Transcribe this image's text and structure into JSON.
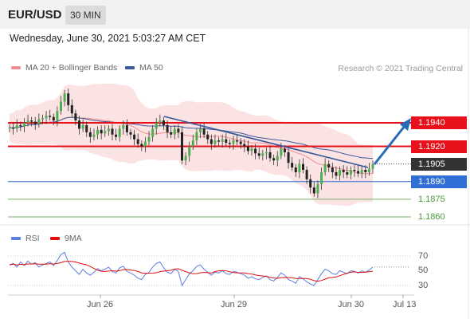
{
  "header": {
    "symbol": "EUR/USD",
    "timeframe": "30 MIN"
  },
  "datetime": "Wednesday, June 30, 2021 5:03:27 AM CET",
  "legend": {
    "ma20_bb": "MA 20 + Bollinger Bands",
    "ma50": "MA 50",
    "credit": "Research © 2021 Trading Central",
    "rsi": "RSI",
    "ma9": "9MA"
  },
  "colors": {
    "red_level": "#e8101a",
    "blue_level": "#2f6fd6",
    "green_level": "#4a9a3a",
    "band_fill": "#fbd9d9",
    "ma50": "#3a5a9a",
    "rsi": "#5a7fe0",
    "arrow": "#2a6ab8"
  },
  "levels": [
    {
      "id": "r1",
      "price": 1.194,
      "label": "1.1940",
      "style": "red"
    },
    {
      "id": "r2",
      "price": 1.192,
      "label": "1.1920",
      "style": "red"
    },
    {
      "id": "cur",
      "price": 1.1905,
      "label": "1.1905",
      "style": "current"
    },
    {
      "id": "piv",
      "price": 1.189,
      "label": "1.1890",
      "style": "blue"
    },
    {
      "id": "s1",
      "price": 1.1875,
      "label": "1.1875",
      "style": "green"
    },
    {
      "id": "s2",
      "price": 1.186,
      "label": "1.1860",
      "style": "green"
    }
  ],
  "rsi_ticks": [
    "70",
    "50",
    "30"
  ],
  "x_ticks": [
    "Jun 26",
    "Jun 29",
    "Jun 30",
    "Jul 13"
  ],
  "chart_data": {
    "type": "candlestick",
    "series": [
      {
        "name": "EUR/USD",
        "close": [
          1.1936,
          1.1935,
          1.1938,
          1.1937,
          1.194,
          1.1942,
          1.1941,
          1.1939,
          1.1943,
          1.1944,
          1.1946,
          1.1945,
          1.1942,
          1.195,
          1.1958,
          1.1965,
          1.1955,
          1.1948,
          1.1942,
          1.1935,
          1.1938,
          1.1932,
          1.1928,
          1.193,
          1.1934,
          1.1931,
          1.1933,
          1.1935,
          1.193,
          1.1928,
          1.1935,
          1.1938,
          1.1932,
          1.193,
          1.1926,
          1.1922,
          1.192,
          1.1924,
          1.1928,
          1.1935,
          1.194,
          1.1942,
          1.1938,
          1.1932,
          1.193,
          1.1935,
          1.1932,
          1.1908,
          1.1912,
          1.192,
          1.1925,
          1.1932,
          1.1935,
          1.193,
          1.1926,
          1.1922,
          1.1925,
          1.1924,
          1.1926,
          1.1923,
          1.1922,
          1.1925,
          1.1924,
          1.1922,
          1.192,
          1.1916,
          1.1918,
          1.1914,
          1.1912,
          1.1914,
          1.1915,
          1.191,
          1.1908,
          1.1912,
          1.1918,
          1.1915,
          1.1906,
          1.1902,
          1.1898,
          1.1905,
          1.19,
          1.1892,
          1.1885,
          1.188,
          1.1888,
          1.1898,
          1.1905,
          1.1902,
          1.1898,
          1.1895,
          1.19,
          1.1898,
          1.1896,
          1.19,
          1.1899,
          1.1897,
          1.19,
          1.1898,
          1.1901,
          1.1905
        ]
      },
      {
        "name": "RSI"
      },
      {
        "name": "9MA"
      }
    ],
    "x_ticks": [
      "Jun 26",
      "Jun 29",
      "Jun 30",
      "Jul 13"
    ],
    "y_levels": [
      1.194,
      1.192,
      1.1905,
      1.189,
      1.1875,
      1.186
    ],
    "rsi_ticks": [
      70,
      50,
      30
    ],
    "rsi": [
      58,
      60,
      55,
      62,
      57,
      63,
      59,
      61,
      55,
      58,
      60,
      62,
      57,
      64,
      72,
      75,
      62,
      55,
      50,
      45,
      52,
      47,
      44,
      48,
      53,
      50,
      52,
      55,
      49,
      47,
      54,
      56,
      49,
      47,
      44,
      40,
      38,
      45,
      48,
      55,
      60,
      62,
      54,
      48,
      46,
      52,
      49,
      30,
      38,
      46,
      50,
      56,
      58,
      52,
      48,
      44,
      48,
      47,
      50,
      46,
      45,
      49,
      48,
      46,
      44,
      40,
      42,
      39,
      38,
      41,
      43,
      38,
      36,
      41,
      47,
      44,
      38,
      36,
      33,
      42,
      39,
      35,
      32,
      30,
      38,
      46,
      52,
      50,
      46,
      45,
      50,
      48,
      46,
      50,
      49,
      47,
      50,
      48,
      51,
      55
    ],
    "rsi_range": [
      25,
      80
    ]
  }
}
